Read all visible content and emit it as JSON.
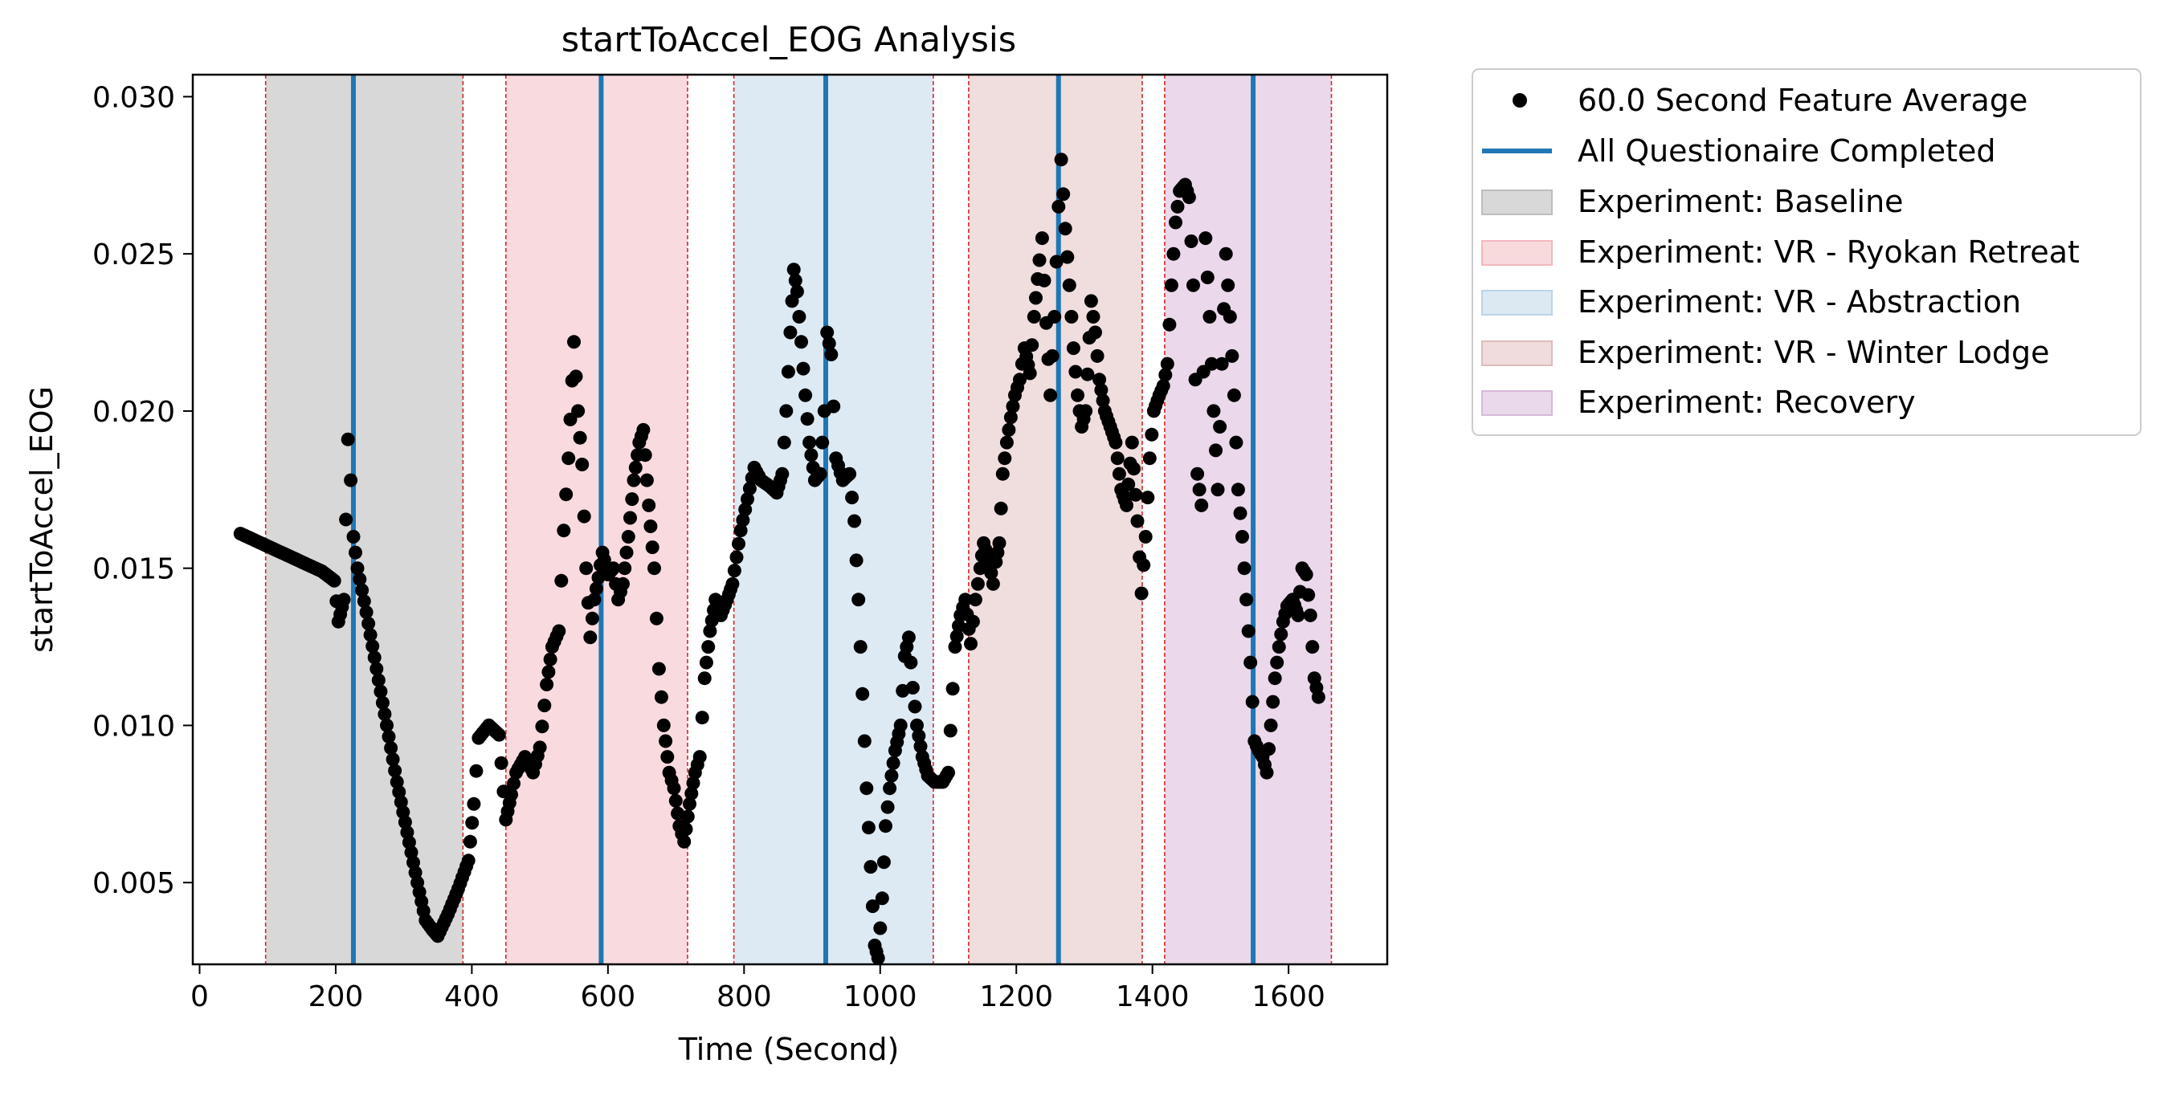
{
  "chart_data": {
    "type": "scatter",
    "title": "startToAccel_EOG Analysis",
    "xlabel": "Time (Second)",
    "ylabel": "startToAccel_EOG",
    "xlim": [
      -10,
      1745
    ],
    "ylim": [
      0.0024,
      0.0307
    ],
    "grid": false,
    "legend_position": "outside-right",
    "x_ticks": [
      0,
      200,
      400,
      600,
      800,
      1000,
      1200,
      1400,
      1600
    ],
    "x_tick_labels": [
      "0",
      "200",
      "400",
      "600",
      "800",
      "1000",
      "1200",
      "1400",
      "1600"
    ],
    "y_ticks": [
      0.005,
      0.01,
      0.015,
      0.02,
      0.025,
      0.03
    ],
    "y_tick_labels": [
      "0.005",
      "0.010",
      "0.015",
      "0.020",
      "0.025",
      "0.030"
    ],
    "series": [
      {
        "name": "60.0 Second Feature Average",
        "kind": "points",
        "color": "#000000",
        "points": [
          [
            60,
            0.0161
          ],
          [
            100,
            0.0157
          ],
          [
            140,
            0.0153
          ],
          [
            180,
            0.0149
          ],
          [
            198,
            0.0146
          ],
          [
            204,
            0.0133
          ],
          [
            212,
            0.014
          ],
          [
            218,
            0.0191
          ],
          [
            222,
            0.0178
          ],
          [
            226,
            0.016
          ],
          [
            232,
            0.015
          ],
          [
            245,
            0.0136
          ],
          [
            260,
            0.0118
          ],
          [
            275,
            0.01
          ],
          [
            290,
            0.0082
          ],
          [
            305,
            0.0066
          ],
          [
            320,
            0.005
          ],
          [
            332,
            0.0038
          ],
          [
            342,
            0.0035
          ],
          [
            350,
            0.0033
          ],
          [
            365,
            0.004
          ],
          [
            380,
            0.0048
          ],
          [
            395,
            0.0057
          ],
          [
            403,
            0.0075
          ],
          [
            410,
            0.0096
          ],
          [
            425,
            0.01
          ],
          [
            440,
            0.0097
          ],
          [
            450,
            0.007
          ],
          [
            458,
            0.0078
          ],
          [
            465,
            0.0085
          ],
          [
            478,
            0.009
          ],
          [
            490,
            0.0085
          ],
          [
            500,
            0.0093
          ],
          [
            510,
            0.0113
          ],
          [
            518,
            0.0125
          ],
          [
            528,
            0.013
          ],
          [
            535,
            0.0162
          ],
          [
            542,
            0.0185
          ],
          [
            550,
            0.0222
          ],
          [
            556,
            0.02
          ],
          [
            562,
            0.0183
          ],
          [
            568,
            0.015
          ],
          [
            574,
            0.0128
          ],
          [
            580,
            0.014
          ],
          [
            586,
            0.0147
          ],
          [
            592,
            0.0155
          ],
          [
            600,
            0.0148
          ],
          [
            608,
            0.015
          ],
          [
            615,
            0.014
          ],
          [
            622,
            0.0145
          ],
          [
            630,
            0.016
          ],
          [
            638,
            0.0178
          ],
          [
            646,
            0.019
          ],
          [
            652,
            0.0194
          ],
          [
            660,
            0.017
          ],
          [
            668,
            0.015
          ],
          [
            675,
            0.0118
          ],
          [
            682,
            0.01
          ],
          [
            690,
            0.0085
          ],
          [
            697,
            0.008
          ],
          [
            705,
            0.0068
          ],
          [
            712,
            0.0063
          ],
          [
            720,
            0.0075
          ],
          [
            728,
            0.0085
          ],
          [
            735,
            0.009
          ],
          [
            742,
            0.0115
          ],
          [
            750,
            0.013
          ],
          [
            758,
            0.014
          ],
          [
            766,
            0.0135
          ],
          [
            775,
            0.014
          ],
          [
            783,
            0.0145
          ],
          [
            795,
            0.0162
          ],
          [
            805,
            0.0172
          ],
          [
            815,
            0.0182
          ],
          [
            825,
            0.0178
          ],
          [
            838,
            0.0176
          ],
          [
            848,
            0.0174
          ],
          [
            856,
            0.018
          ],
          [
            862,
            0.02
          ],
          [
            868,
            0.0225
          ],
          [
            873,
            0.0245
          ],
          [
            878,
            0.0238
          ],
          [
            884,
            0.0222
          ],
          [
            890,
            0.0205
          ],
          [
            896,
            0.019
          ],
          [
            904,
            0.0178
          ],
          [
            912,
            0.018
          ],
          [
            918,
            0.02
          ],
          [
            922,
            0.0225
          ],
          [
            928,
            0.0218
          ],
          [
            935,
            0.0185
          ],
          [
            945,
            0.0178
          ],
          [
            955,
            0.018
          ],
          [
            962,
            0.0165
          ],
          [
            968,
            0.014
          ],
          [
            974,
            0.011
          ],
          [
            980,
            0.008
          ],
          [
            986,
            0.0055
          ],
          [
            992,
            0.003
          ],
          [
            997,
            0.0026
          ],
          [
            1003,
            0.0045
          ],
          [
            1008,
            0.0068
          ],
          [
            1014,
            0.008
          ],
          [
            1022,
            0.0092
          ],
          [
            1030,
            0.01
          ],
          [
            1036,
            0.0122
          ],
          [
            1042,
            0.0128
          ],
          [
            1048,
            0.0112
          ],
          [
            1054,
            0.01
          ],
          [
            1062,
            0.009
          ],
          [
            1070,
            0.0084
          ],
          [
            1080,
            0.0082
          ],
          [
            1092,
            0.0082
          ],
          [
            1100,
            0.0085
          ],
          [
            1110,
            0.0125
          ],
          [
            1118,
            0.0135
          ],
          [
            1125,
            0.014
          ],
          [
            1133,
            0.0126
          ],
          [
            1140,
            0.014
          ],
          [
            1147,
            0.015
          ],
          [
            1152,
            0.0158
          ],
          [
            1160,
            0.0152
          ],
          [
            1166,
            0.0145
          ],
          [
            1170,
            0.0152
          ],
          [
            1175,
            0.0158
          ],
          [
            1180,
            0.018
          ],
          [
            1186,
            0.019
          ],
          [
            1192,
            0.0198
          ],
          [
            1198,
            0.0205
          ],
          [
            1205,
            0.021
          ],
          [
            1212,
            0.022
          ],
          [
            1220,
            0.0212
          ],
          [
            1226,
            0.023
          ],
          [
            1234,
            0.0248
          ],
          [
            1238,
            0.0255
          ],
          [
            1244,
            0.0228
          ],
          [
            1250,
            0.0205
          ],
          [
            1256,
            0.023
          ],
          [
            1262,
            0.0265
          ],
          [
            1266,
            0.028
          ],
          [
            1272,
            0.0258
          ],
          [
            1278,
            0.024
          ],
          [
            1284,
            0.022
          ],
          [
            1290,
            0.0205
          ],
          [
            1296,
            0.0195
          ],
          [
            1302,
            0.02
          ],
          [
            1310,
            0.0235
          ],
          [
            1316,
            0.0225
          ],
          [
            1322,
            0.021
          ],
          [
            1330,
            0.02
          ],
          [
            1338,
            0.0195
          ],
          [
            1346,
            0.019
          ],
          [
            1354,
            0.0175
          ],
          [
            1362,
            0.017
          ],
          [
            1370,
            0.019
          ],
          [
            1378,
            0.0165
          ],
          [
            1384,
            0.0142
          ],
          [
            1390,
            0.016
          ],
          [
            1396,
            0.0185
          ],
          [
            1402,
            0.02
          ],
          [
            1410,
            0.0205
          ],
          [
            1416,
            0.0208
          ],
          [
            1422,
            0.0215
          ],
          [
            1428,
            0.024
          ],
          [
            1434,
            0.026
          ],
          [
            1440,
            0.027
          ],
          [
            1448,
            0.0272
          ],
          [
            1454,
            0.0268
          ],
          [
            1460,
            0.024
          ],
          [
            1466,
            0.018
          ],
          [
            1472,
            0.017
          ],
          [
            1478,
            0.0255
          ],
          [
            1484,
            0.023
          ],
          [
            1490,
            0.02
          ],
          [
            1496,
            0.0175
          ],
          [
            1502,
            0.0215
          ],
          [
            1508,
            0.025
          ],
          [
            1514,
            0.023
          ],
          [
            1520,
            0.0205
          ],
          [
            1526,
            0.0175
          ],
          [
            1532,
            0.016
          ],
          [
            1538,
            0.014
          ],
          [
            1544,
            0.012
          ],
          [
            1550,
            0.0095
          ],
          [
            1556,
            0.0092
          ],
          [
            1562,
            0.009
          ],
          [
            1568,
            0.0085
          ],
          [
            1574,
            0.01
          ],
          [
            1580,
            0.0115
          ],
          [
            1586,
            0.0125
          ],
          [
            1592,
            0.0133
          ],
          [
            1598,
            0.0138
          ],
          [
            1606,
            0.014
          ],
          [
            1614,
            0.0135
          ],
          [
            1620,
            0.015
          ],
          [
            1626,
            0.0148
          ],
          [
            1632,
            0.0135
          ],
          [
            1638,
            0.0115
          ],
          [
            1644,
            0.0109
          ]
        ]
      },
      {
        "name": "All Questionaire Completed",
        "kind": "vlines",
        "color": "#1f77b4",
        "x": [
          226,
          590,
          920,
          1262,
          1548
        ]
      }
    ],
    "regions": [
      {
        "name": "Experiment: Baseline",
        "start": 97,
        "end": 387,
        "color": "#c8c8c8"
      },
      {
        "name": "Experiment: VR - Ryokan Retreat",
        "start": 450,
        "end": 717,
        "color": "#f6ccd1"
      },
      {
        "name": "Experiment: VR - Abstraction",
        "start": 785,
        "end": 1078,
        "color": "#cfe1ef"
      },
      {
        "name": "Experiment: VR - Winter Lodge",
        "start": 1130,
        "end": 1385,
        "color": "#e9cfcf"
      },
      {
        "name": "Experiment: Recovery",
        "start": 1418,
        "end": 1663,
        "color": "#e2c8e3"
      }
    ],
    "region_boundary_color": "#d62728"
  }
}
